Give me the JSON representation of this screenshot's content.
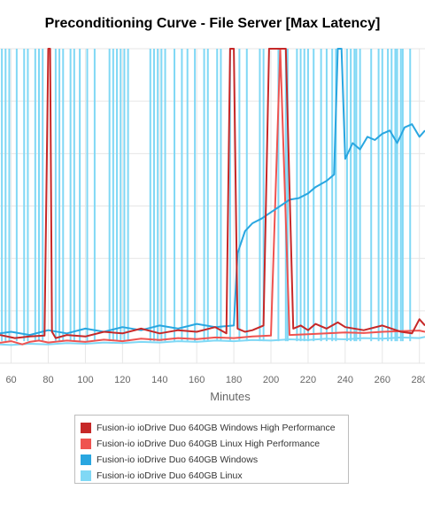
{
  "chart_data": {
    "type": "line",
    "title": "Preconditioning Curve - File Server [Max Latency]",
    "xlabel": "Minutes",
    "ylabel": "",
    "xlim": [
      54,
      283
    ],
    "ylim": [
      0,
      1000
    ],
    "x_ticks": [
      60,
      80,
      100,
      120,
      140,
      160,
      180,
      200,
      220,
      240,
      260,
      280
    ],
    "grid": true,
    "legend_position": "bottom",
    "series": [
      {
        "name": "Fusion-io ioDrive Duo 640GB Windows High Performance",
        "color": "#c62828",
        "x": [
          54,
          62,
          70,
          78,
          80,
          81,
          82,
          84,
          90,
          100,
          110,
          120,
          130,
          140,
          150,
          160,
          170,
          176,
          178,
          180,
          182,
          186,
          190,
          196,
          199,
          200,
          201,
          204,
          206,
          208,
          212,
          216,
          220,
          224,
          230,
          236,
          240,
          250,
          260,
          270,
          276,
          280,
          283
        ],
        "y": [
          90,
          80,
          85,
          88,
          1000,
          1000,
          100,
          80,
          90,
          85,
          100,
          95,
          110,
          95,
          105,
          100,
          115,
          95,
          1000,
          1000,
          110,
          100,
          105,
          120,
          1000,
          1000,
          1000,
          1000,
          1000,
          1000,
          110,
          120,
          105,
          125,
          110,
          130,
          115,
          105,
          120,
          100,
          95,
          140,
          120
        ]
      },
      {
        "name": "Fusion-io ioDrive Duo 640GB Linux High Performance",
        "color": "#ef5350",
        "x": [
          54,
          60,
          66,
          70,
          75,
          80,
          90,
          100,
          110,
          120,
          130,
          140,
          150,
          160,
          170,
          180,
          190,
          200,
          205,
          210,
          220,
          230,
          240,
          250,
          260,
          270,
          280,
          283
        ],
        "y": [
          65,
          70,
          60,
          68,
          72,
          66,
          72,
          68,
          75,
          70,
          78,
          74,
          80,
          77,
          82,
          80,
          85,
          88,
          1000,
          90,
          92,
          95,
          98,
          96,
          100,
          102,
          104,
          100
        ]
      },
      {
        "name": "Fusion-io ioDrive Duo 640GB Windows",
        "color": "#29a6e0",
        "x": [
          54,
          60,
          70,
          80,
          90,
          100,
          110,
          120,
          130,
          140,
          150,
          160,
          170,
          180,
          182,
          186,
          190,
          195,
          200,
          205,
          210,
          215,
          220,
          224,
          230,
          234,
          236,
          238,
          240,
          244,
          248,
          252,
          256,
          260,
          264,
          268,
          272,
          276,
          280,
          283
        ],
        "y": [
          95,
          100,
          90,
          105,
          95,
          110,
          100,
          115,
          105,
          120,
          110,
          125,
          115,
          120,
          350,
          420,
          445,
          460,
          480,
          500,
          520,
          525,
          540,
          560,
          580,
          600,
          1000,
          1000,
          650,
          700,
          680,
          720,
          710,
          730,
          740,
          700,
          750,
          760,
          720,
          740
        ]
      },
      {
        "name": "Fusion-io ioDrive Duo 640GB Linux",
        "color": "#80d8f5",
        "x": [
          54,
          60,
          70,
          80,
          90,
          100,
          110,
          120,
          130,
          140,
          150,
          160,
          170,
          180,
          190,
          200,
          210,
          220,
          230,
          240,
          250,
          260,
          270,
          280,
          283
        ],
        "y": [
          60,
          58,
          62,
          60,
          64,
          62,
          66,
          64,
          68,
          66,
          70,
          68,
          72,
          70,
          74,
          72,
          76,
          74,
          78,
          76,
          80,
          78,
          82,
          80,
          84
        ]
      }
    ],
    "spike_minutes": {
      "Fusion-io ioDrive Duo 640GB Linux": [
        55,
        57,
        59,
        63,
        67,
        69,
        73,
        75,
        77,
        84,
        86,
        88,
        92,
        94,
        97,
        101,
        105,
        113,
        115,
        117,
        119,
        121,
        123,
        135,
        137,
        139,
        141,
        143,
        148,
        152,
        155,
        159,
        164,
        166,
        171,
        173,
        178,
        183,
        187,
        194,
        196,
        204,
        208,
        209,
        214,
        216,
        218,
        220,
        223,
        227,
        230,
        233,
        235,
        241,
        243,
        245,
        246,
        248,
        254,
        258,
        260,
        263,
        265,
        267,
        268,
        270,
        271,
        275
      ]
    }
  },
  "legend": {
    "items": [
      {
        "label": "Fusion-io ioDrive Duo 640GB Windows High Performance",
        "color": "#c62828"
      },
      {
        "label": "Fusion-io ioDrive Duo 640GB Linux High Performance",
        "color": "#ef5350"
      },
      {
        "label": "Fusion-io ioDrive Duo 640GB Windows",
        "color": "#29a6e0"
      },
      {
        "label": "Fusion-io ioDrive Duo 640GB Linux",
        "color": "#80d8f5"
      }
    ]
  },
  "colors": {
    "grid": "#e6e6e6",
    "tick_label": "#666666",
    "background": "#ffffff"
  }
}
